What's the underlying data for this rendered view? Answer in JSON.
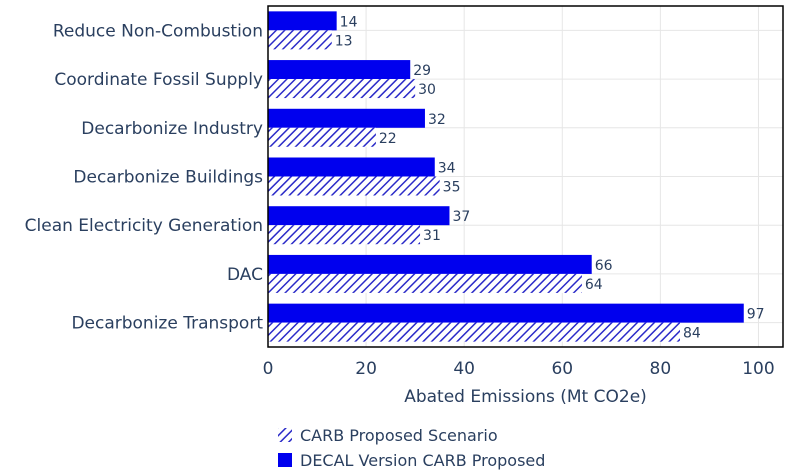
{
  "chart_data": {
    "type": "bar",
    "orientation": "horizontal",
    "categories": [
      "Reduce Non-Combustion",
      "Coordinate Fossil Supply",
      "Decarbonize Industry",
      "Decarbonize Buildings",
      "Clean Electricity Generation",
      "DAC",
      "Decarbonize Transport"
    ],
    "series": [
      {
        "name": "DECAL Version CARB Proposed",
        "values": [
          14,
          29,
          32,
          34,
          37,
          66,
          97
        ],
        "color": "#0000ee",
        "pattern": "solid"
      },
      {
        "name": "CARB Proposed Scenario",
        "values": [
          13,
          30,
          22,
          35,
          31,
          64,
          84
        ],
        "color": "#2b2bc8",
        "pattern": "hatched"
      }
    ],
    "xlabel": "Abated Emissions (Mt CO2e)",
    "xlim": [
      0,
      105
    ],
    "xticks": [
      0,
      20,
      40,
      60,
      80,
      100
    ],
    "grid": true,
    "legend": {
      "position": "bottom",
      "entries": [
        "CARB Proposed Scenario",
        "DECAL Version CARB Proposed"
      ]
    }
  }
}
